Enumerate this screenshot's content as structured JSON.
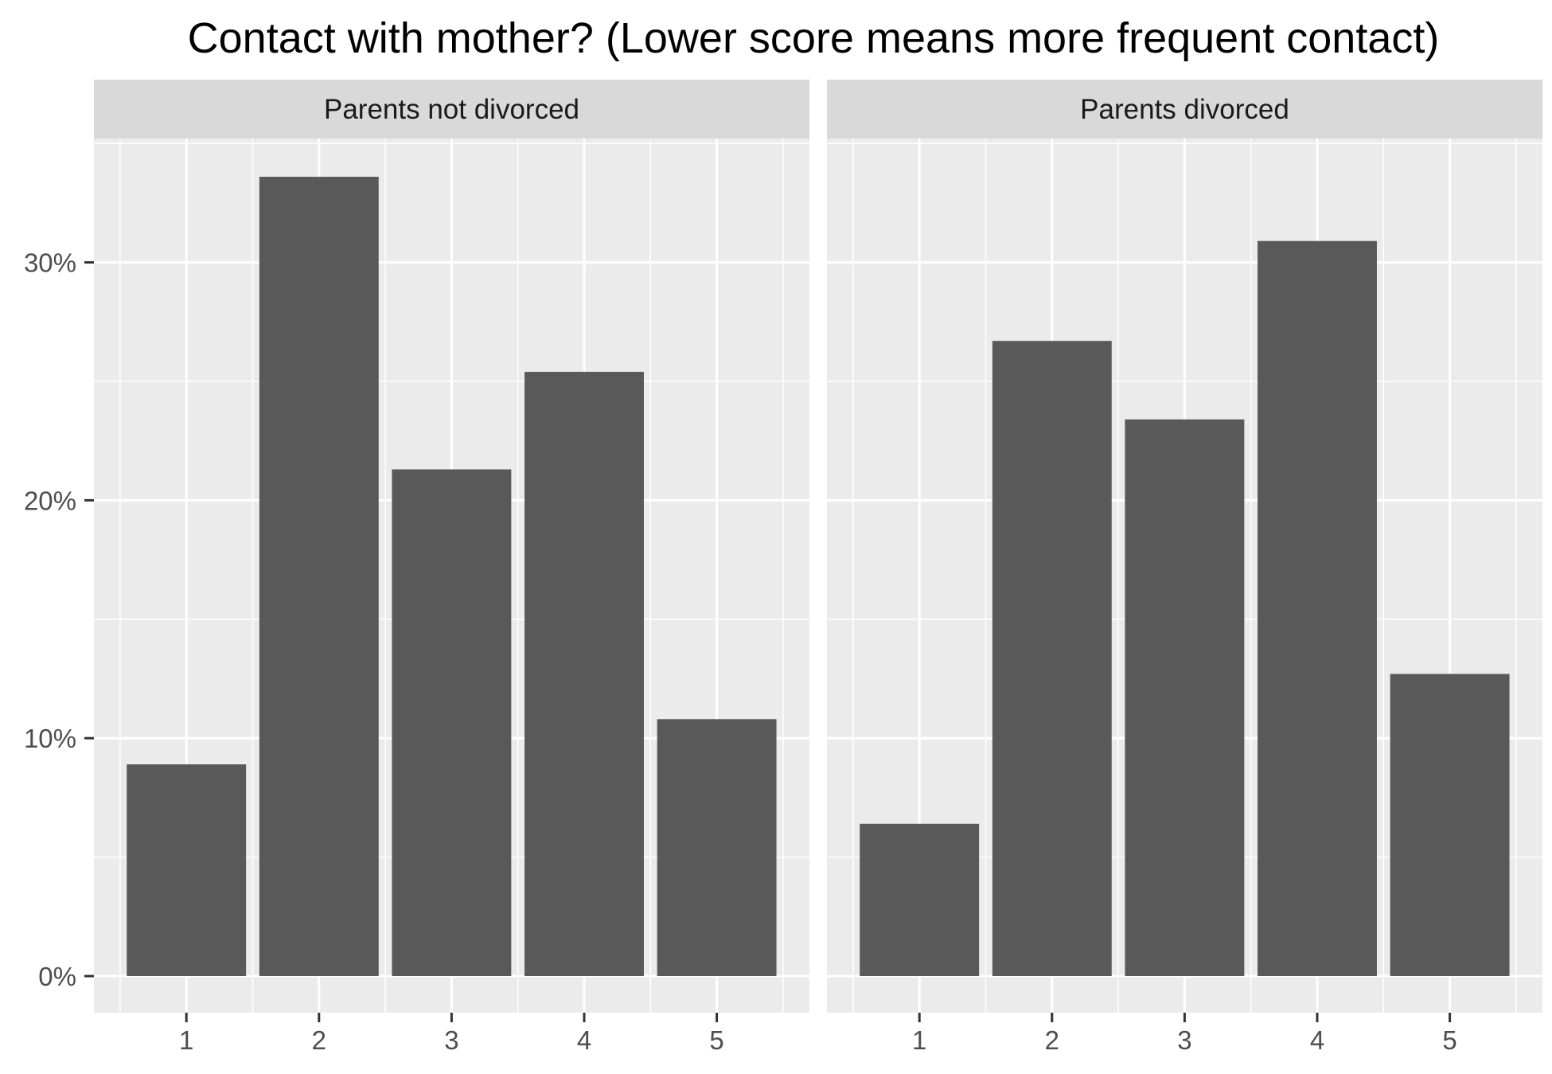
{
  "chart_data": {
    "type": "bar",
    "title": "Contact with mother? (Lower score means more frequent contact)",
    "xlabel": "",
    "ylabel": "",
    "categories": [
      "1",
      "2",
      "3",
      "4",
      "5"
    ],
    "y_ticks": [
      0,
      10,
      20,
      30
    ],
    "y_tick_labels": [
      "0%",
      "10%",
      "20%",
      "30%"
    ],
    "ylim": [
      0,
      35.2
    ],
    "grid": true,
    "colors": {
      "bar": "#595959",
      "panel_background": "#ebebeb",
      "strip_background": "#d9d9d9",
      "grid": "#ffffff"
    },
    "panels": [
      {
        "label": "Parents not divorced",
        "values": [
          8.9,
          33.6,
          21.3,
          25.4,
          10.8
        ]
      },
      {
        "label": "Parents divorced",
        "values": [
          6.4,
          26.7,
          23.4,
          30.9,
          12.7
        ]
      }
    ]
  }
}
